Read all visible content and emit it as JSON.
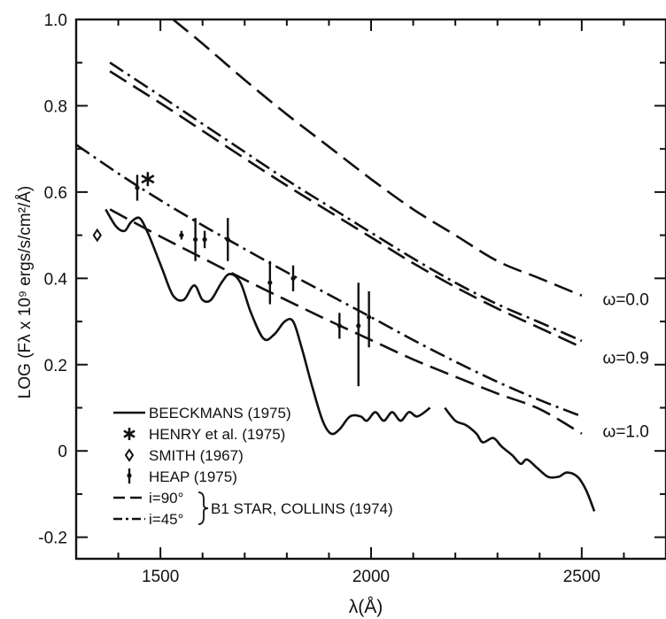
{
  "chart_data": {
    "type": "line",
    "xlabel": "λ(Å)",
    "ylabel": "LOG (Fλ x 10⁹ ergs/s/cm²/Å)",
    "xlim": [
      1300,
      2700
    ],
    "ylim": [
      -0.25,
      1.0
    ],
    "xticks": [
      {
        "value": 1500,
        "label": "1500"
      },
      {
        "value": 2000,
        "label": "2000"
      },
      {
        "value": 2500,
        "label": "2500"
      }
    ],
    "yticks": [
      {
        "value": 1.0,
        "label": "1.0"
      },
      {
        "value": 0.8,
        "label": "0.8"
      },
      {
        "value": 0.6,
        "label": "0.6"
      },
      {
        "value": 0.4,
        "label": "0.4"
      },
      {
        "value": 0.2,
        "label": "0.2"
      },
      {
        "value": 0.0,
        "label": "0"
      },
      {
        "value": -0.2,
        "label": "-0.2"
      }
    ],
    "grid": false,
    "series": [
      {
        "name": "BEECKMANS (1975)",
        "style": "solid",
        "segments": [
          [
            [
              1370,
              0.56
            ],
            [
              1395,
              0.52
            ],
            [
              1415,
              0.51
            ],
            [
              1430,
              0.53
            ],
            [
              1450,
              0.54
            ],
            [
              1468,
              0.51
            ],
            [
              1485,
              0.47
            ],
            [
              1505,
              0.42
            ],
            [
              1530,
              0.36
            ],
            [
              1555,
              0.35
            ],
            [
              1575,
              0.38
            ],
            [
              1585,
              0.38
            ],
            [
              1600,
              0.35
            ],
            [
              1620,
              0.35
            ],
            [
              1645,
              0.39
            ],
            [
              1665,
              0.41
            ],
            [
              1690,
              0.39
            ],
            [
              1715,
              0.32
            ],
            [
              1745,
              0.26
            ],
            [
              1770,
              0.27
            ],
            [
              1795,
              0.3
            ],
            [
              1815,
              0.3
            ],
            [
              1835,
              0.24
            ],
            [
              1860,
              0.15
            ],
            [
              1885,
              0.07
            ],
            [
              1905,
              0.04
            ],
            [
              1925,
              0.05
            ],
            [
              1950,
              0.08
            ],
            [
              1975,
              0.08
            ],
            [
              1990,
              0.07
            ],
            [
              2010,
              0.09
            ],
            [
              2030,
              0.07
            ],
            [
              2050,
              0.09
            ],
            [
              2070,
              0.07
            ],
            [
              2090,
              0.09
            ],
            [
              2110,
              0.08
            ],
            [
              2140,
              0.1
            ]
          ],
          [
            [
              2175,
              0.1
            ],
            [
              2200,
              0.07
            ],
            [
              2225,
              0.06
            ],
            [
              2250,
              0.04
            ],
            [
              2265,
              0.02
            ],
            [
              2290,
              0.03
            ],
            [
              2310,
              0.01
            ],
            [
              2335,
              -0.01
            ],
            [
              2355,
              -0.03
            ],
            [
              2370,
              -0.02
            ],
            [
              2395,
              -0.04
            ],
            [
              2420,
              -0.06
            ],
            [
              2445,
              -0.06
            ],
            [
              2465,
              -0.05
            ],
            [
              2490,
              -0.06
            ],
            [
              2510,
              -0.09
            ],
            [
              2530,
              -0.14
            ]
          ]
        ]
      },
      {
        "name": "HENRY et al. (1975)",
        "style": "star",
        "points": [
          [
            1470,
            0.63
          ]
        ]
      },
      {
        "name": "SMITH (1967)",
        "style": "diamond",
        "points": [
          [
            1350,
            0.5
          ]
        ]
      },
      {
        "name": "HEAP (1975)",
        "style": "errorbar",
        "points": [
          {
            "x": 1445,
            "y": 0.61,
            "low": 0.58,
            "high": 0.64
          },
          {
            "x": 1550,
            "y": 0.5,
            "low": 0.49,
            "high": 0.51
          },
          {
            "x": 1583,
            "y": 0.49,
            "low": 0.44,
            "high": 0.54
          },
          {
            "x": 1605,
            "y": 0.49,
            "low": 0.47,
            "high": 0.51
          },
          {
            "x": 1660,
            "y": 0.49,
            "low": 0.44,
            "high": 0.54
          },
          {
            "x": 1760,
            "y": 0.39,
            "low": 0.34,
            "high": 0.44
          },
          {
            "x": 1815,
            "y": 0.4,
            "low": 0.37,
            "high": 0.43
          },
          {
            "x": 1925,
            "y": 0.29,
            "low": 0.26,
            "high": 0.32
          },
          {
            "x": 1970,
            "y": 0.29,
            "low": 0.15,
            "high": 0.39
          },
          {
            "x": 1995,
            "y": 0.31,
            "low": 0.24,
            "high": 0.37
          }
        ]
      },
      {
        "name": "i=90°",
        "style": "dashed",
        "segments": [
          [
            [
              1530,
              1.0
            ],
            [
              1600,
              0.944
            ],
            [
              1700,
              0.86
            ],
            [
              1800,
              0.78
            ],
            [
              1900,
              0.705
            ],
            [
              2000,
              0.63
            ],
            [
              2100,
              0.56
            ],
            [
              2200,
              0.5
            ],
            [
              2300,
              0.44
            ],
            [
              2400,
              0.4
            ],
            [
              2500,
              0.36
            ]
          ],
          [
            [
              1380,
              0.88
            ],
            [
              1500,
              0.806
            ],
            [
              1600,
              0.742
            ],
            [
              1700,
              0.678
            ],
            [
              1800,
              0.615
            ],
            [
              1900,
              0.555
            ],
            [
              2000,
              0.495
            ],
            [
              2100,
              0.435
            ],
            [
              2200,
              0.38
            ],
            [
              2300,
              0.33
            ],
            [
              2400,
              0.285
            ],
            [
              2500,
              0.24
            ]
          ],
          [
            [
              1380,
              0.56
            ],
            [
              1500,
              0.497
            ],
            [
              1600,
              0.447
            ],
            [
              1700,
              0.397
            ],
            [
              1800,
              0.349
            ],
            [
              1900,
              0.302
            ],
            [
              2000,
              0.257
            ],
            [
              2100,
              0.212
            ],
            [
              2200,
              0.172
            ],
            [
              2300,
              0.133
            ],
            [
              2400,
              0.097
            ],
            [
              2500,
              0.04
            ]
          ]
        ]
      },
      {
        "name": "i=45°",
        "style": "dashdot",
        "segments": [
          [
            [
              1380,
              0.9
            ],
            [
              1500,
              0.823
            ],
            [
              1600,
              0.758
            ],
            [
              1700,
              0.693
            ],
            [
              1800,
              0.628
            ],
            [
              1900,
              0.567
            ],
            [
              2000,
              0.506
            ],
            [
              2100,
              0.446
            ],
            [
              2200,
              0.39
            ],
            [
              2300,
              0.34
            ],
            [
              2400,
              0.298
            ],
            [
              2500,
              0.255
            ]
          ],
          [
            [
              1300,
              0.71
            ],
            [
              1400,
              0.643
            ],
            [
              1500,
              0.581
            ],
            [
              1600,
              0.523
            ],
            [
              1700,
              0.468
            ],
            [
              1800,
              0.414
            ],
            [
              1900,
              0.362
            ],
            [
              2000,
              0.31
            ],
            [
              2100,
              0.257
            ],
            [
              2200,
              0.207
            ],
            [
              2300,
              0.16
            ],
            [
              2400,
              0.118
            ],
            [
              2500,
              0.08
            ]
          ]
        ]
      }
    ],
    "curve_labels": [
      {
        "text": "ω=0.0",
        "x": 2535,
        "y": 0.35
      },
      {
        "text": "ω=0.9",
        "x": 2535,
        "y": 0.215
      },
      {
        "text": "ω=1.0",
        "x": 2535,
        "y": 0.045
      }
    ],
    "legend": {
      "placement": "bottom-left",
      "entries": [
        {
          "label": "BEECKMANS (1975)",
          "symbol": "solid"
        },
        {
          "label": "HENRY et al. (1975)",
          "symbol": "star"
        },
        {
          "label": "SMITH  (1967)",
          "symbol": "diamond"
        },
        {
          "label": "HEAP  (1975)",
          "symbol": "errorbar"
        },
        {
          "label": "i=90°",
          "symbol": "dashed"
        },
        {
          "label": "i=45°",
          "symbol": "dashdot"
        }
      ],
      "bracket_label": "B1 STAR, COLLINS (1974)"
    }
  }
}
